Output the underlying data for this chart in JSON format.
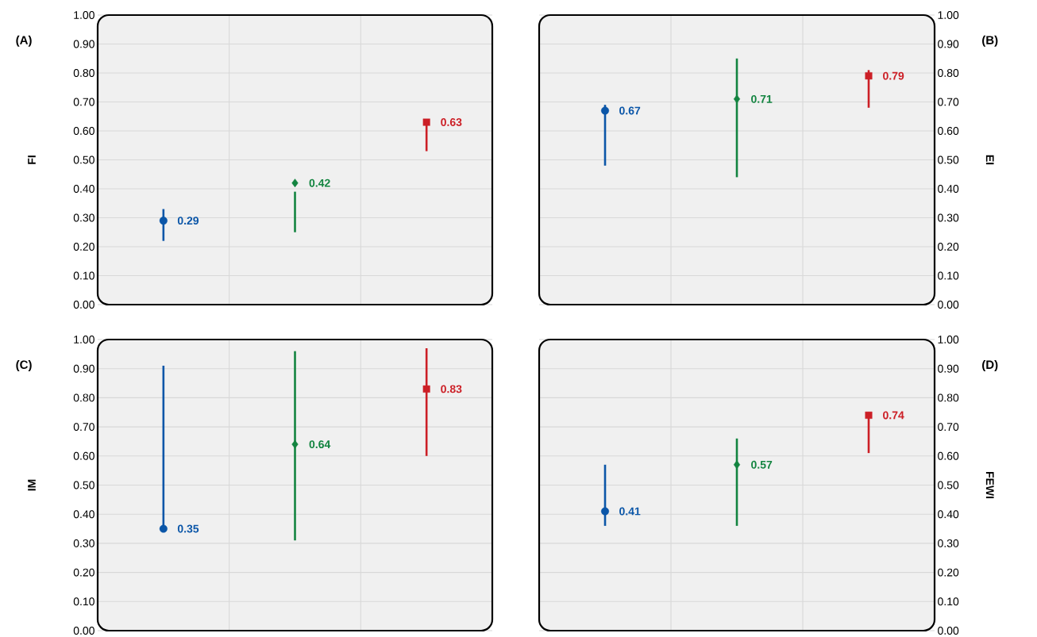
{
  "chart_data": [
    {
      "type": "scatter",
      "title": "(A)",
      "ylabel": "FI",
      "categories": [
        null,
        null,
        null
      ],
      "ylim": [
        0,
        1
      ],
      "grid": true,
      "yticks": [
        {
          "value": 0,
          "label": "0.00"
        },
        {
          "value": 0.1,
          "label": "0.10"
        },
        {
          "value": 0.2,
          "label": "0.20"
        },
        {
          "value": 0.3,
          "label": "0.30"
        },
        {
          "value": 0.4,
          "label": "0.40"
        },
        {
          "value": 0.5,
          "label": "0.50"
        },
        {
          "value": 0.6,
          "label": "0.60"
        },
        {
          "value": 0.7,
          "label": "0.70"
        },
        {
          "value": 0.8,
          "label": "0.80"
        },
        {
          "value": 0.9,
          "label": "0.90"
        },
        {
          "value": 1,
          "label": "1.00"
        }
      ],
      "series": [
        {
          "color": "#0b56a8",
          "marker": "circle",
          "values": [
            0.29,
            null,
            null
          ],
          "errors": [
            [
              0.22,
              0.33
            ],
            null,
            null
          ],
          "value_labels": [
            "0.29",
            null,
            null
          ]
        },
        {
          "color": "#138440",
          "marker": "diamond",
          "values": [
            null,
            0.42,
            null
          ],
          "errors": [
            null,
            [
              0.25,
              0.39
            ],
            null
          ],
          "value_labels": [
            null,
            "0.42",
            null
          ]
        },
        {
          "color": "#cc1f26",
          "marker": "square",
          "values": [
            null,
            null,
            0.63
          ],
          "errors": [
            null,
            null,
            [
              0.53,
              0.63
            ]
          ],
          "value_labels": [
            null,
            null,
            "0.63"
          ]
        }
      ]
    },
    {
      "type": "scatter",
      "annotations": [
        "(B)"
      ],
      "y2label": "EI",
      "categories": [
        null,
        null,
        null
      ],
      "y2lim": [
        0,
        1
      ],
      "grid": true,
      "y2ticks": [
        {
          "value": 0,
          "label": "0.00"
        },
        {
          "value": 0.1,
          "label": "0.10"
        },
        {
          "value": 0.2,
          "label": "0.20"
        },
        {
          "value": 0.3,
          "label": "0.30"
        },
        {
          "value": 0.4,
          "label": "0.40"
        },
        {
          "value": 0.5,
          "label": "0.50"
        },
        {
          "value": 0.6,
          "label": "0.60"
        },
        {
          "value": 0.7,
          "label": "0.70"
        },
        {
          "value": 0.8,
          "label": "0.80"
        },
        {
          "value": 0.9,
          "label": "0.90"
        },
        {
          "value": 1,
          "label": "1.00"
        }
      ],
      "series": [
        {
          "color": "#0b56a8",
          "marker": "circle",
          "axis": "y2",
          "values": [
            0.67,
            null,
            null
          ],
          "errors": [
            [
              0.48,
              0.69
            ],
            null,
            null
          ],
          "value_labels": [
            "0.67",
            null,
            null
          ]
        },
        {
          "color": "#138440",
          "marker": "diamond",
          "axis": "y2",
          "values": [
            null,
            0.71,
            null
          ],
          "errors": [
            null,
            [
              0.44,
              0.85
            ],
            null
          ],
          "value_labels": [
            null,
            "0.71",
            null
          ]
        },
        {
          "color": "#cc1f26",
          "marker": "square",
          "axis": "y2",
          "values": [
            null,
            null,
            0.79
          ],
          "errors": [
            null,
            null,
            [
              0.68,
              0.81
            ]
          ],
          "value_labels": [
            null,
            null,
            "0.79"
          ]
        }
      ]
    },
    {
      "type": "scatter",
      "title": "(C)",
      "ylabel": "IM",
      "categories": [
        null,
        null,
        null
      ],
      "ylim": [
        0,
        1
      ],
      "grid": true,
      "yticks": [
        {
          "value": 0,
          "label": "0.00"
        },
        {
          "value": 0.1,
          "label": "0.10"
        },
        {
          "value": 0.2,
          "label": "0.20"
        },
        {
          "value": 0.3,
          "label": "0.30"
        },
        {
          "value": 0.4,
          "label": "0.40"
        },
        {
          "value": 0.5,
          "label": "0.50"
        },
        {
          "value": 0.6,
          "label": "0.60"
        },
        {
          "value": 0.7,
          "label": "0.70"
        },
        {
          "value": 0.8,
          "label": "0.80"
        },
        {
          "value": 0.9,
          "label": "0.90"
        },
        {
          "value": 1,
          "label": "1.00"
        }
      ],
      "series": [
        {
          "color": "#0b56a8",
          "marker": "circle",
          "values": [
            0.35,
            null,
            null
          ],
          "errors": [
            [
              0.35,
              0.91
            ],
            null,
            null
          ],
          "value_labels": [
            "0.35",
            null,
            null
          ]
        },
        {
          "color": "#138440",
          "marker": "diamond",
          "values": [
            null,
            0.64,
            null
          ],
          "errors": [
            null,
            [
              0.31,
              0.96
            ],
            null
          ],
          "value_labels": [
            null,
            "0.64",
            null
          ]
        },
        {
          "color": "#cc1f26",
          "marker": "square",
          "values": [
            null,
            null,
            0.83
          ],
          "errors": [
            null,
            null,
            [
              0.6,
              0.97
            ]
          ],
          "value_labels": [
            null,
            null,
            "0.83"
          ]
        }
      ]
    },
    {
      "type": "scatter",
      "annotations": [
        "(D)"
      ],
      "y2label": "FEWI",
      "categories": [
        null,
        null,
        null
      ],
      "y2lim": [
        0,
        1
      ],
      "grid": true,
      "y2ticks": [
        {
          "value": 0,
          "label": "0.00"
        },
        {
          "value": 0.1,
          "label": "0.10"
        },
        {
          "value": 0.2,
          "label": "0.20"
        },
        {
          "value": 0.3,
          "label": "0.30"
        },
        {
          "value": 0.4,
          "label": "0.40"
        },
        {
          "value": 0.5,
          "label": "0.50"
        },
        {
          "value": 0.6,
          "label": "0.60"
        },
        {
          "value": 0.7,
          "label": "0.70"
        },
        {
          "value": 0.8,
          "label": "0.80"
        },
        {
          "value": 0.9,
          "label": "0.90"
        },
        {
          "value": 1,
          "label": "1.00"
        }
      ],
      "series": [
        {
          "color": "#0b56a8",
          "marker": "circle",
          "axis": "y2",
          "values": [
            0.41,
            null,
            null
          ],
          "errors": [
            [
              0.36,
              0.57
            ],
            null,
            null
          ],
          "value_labels": [
            "0.41",
            null,
            null
          ]
        },
        {
          "color": "#138440",
          "marker": "diamond",
          "axis": "y2",
          "values": [
            null,
            0.57,
            null
          ],
          "errors": [
            null,
            [
              0.36,
              0.66
            ],
            null
          ],
          "value_labels": [
            null,
            "0.57",
            null
          ]
        },
        {
          "color": "#cc1f26",
          "marker": "square",
          "axis": "y2",
          "values": [
            null,
            null,
            0.74
          ],
          "errors": [
            null,
            null,
            [
              0.61,
              0.75
            ]
          ],
          "value_labels": [
            null,
            null,
            "0.74"
          ]
        }
      ]
    }
  ]
}
